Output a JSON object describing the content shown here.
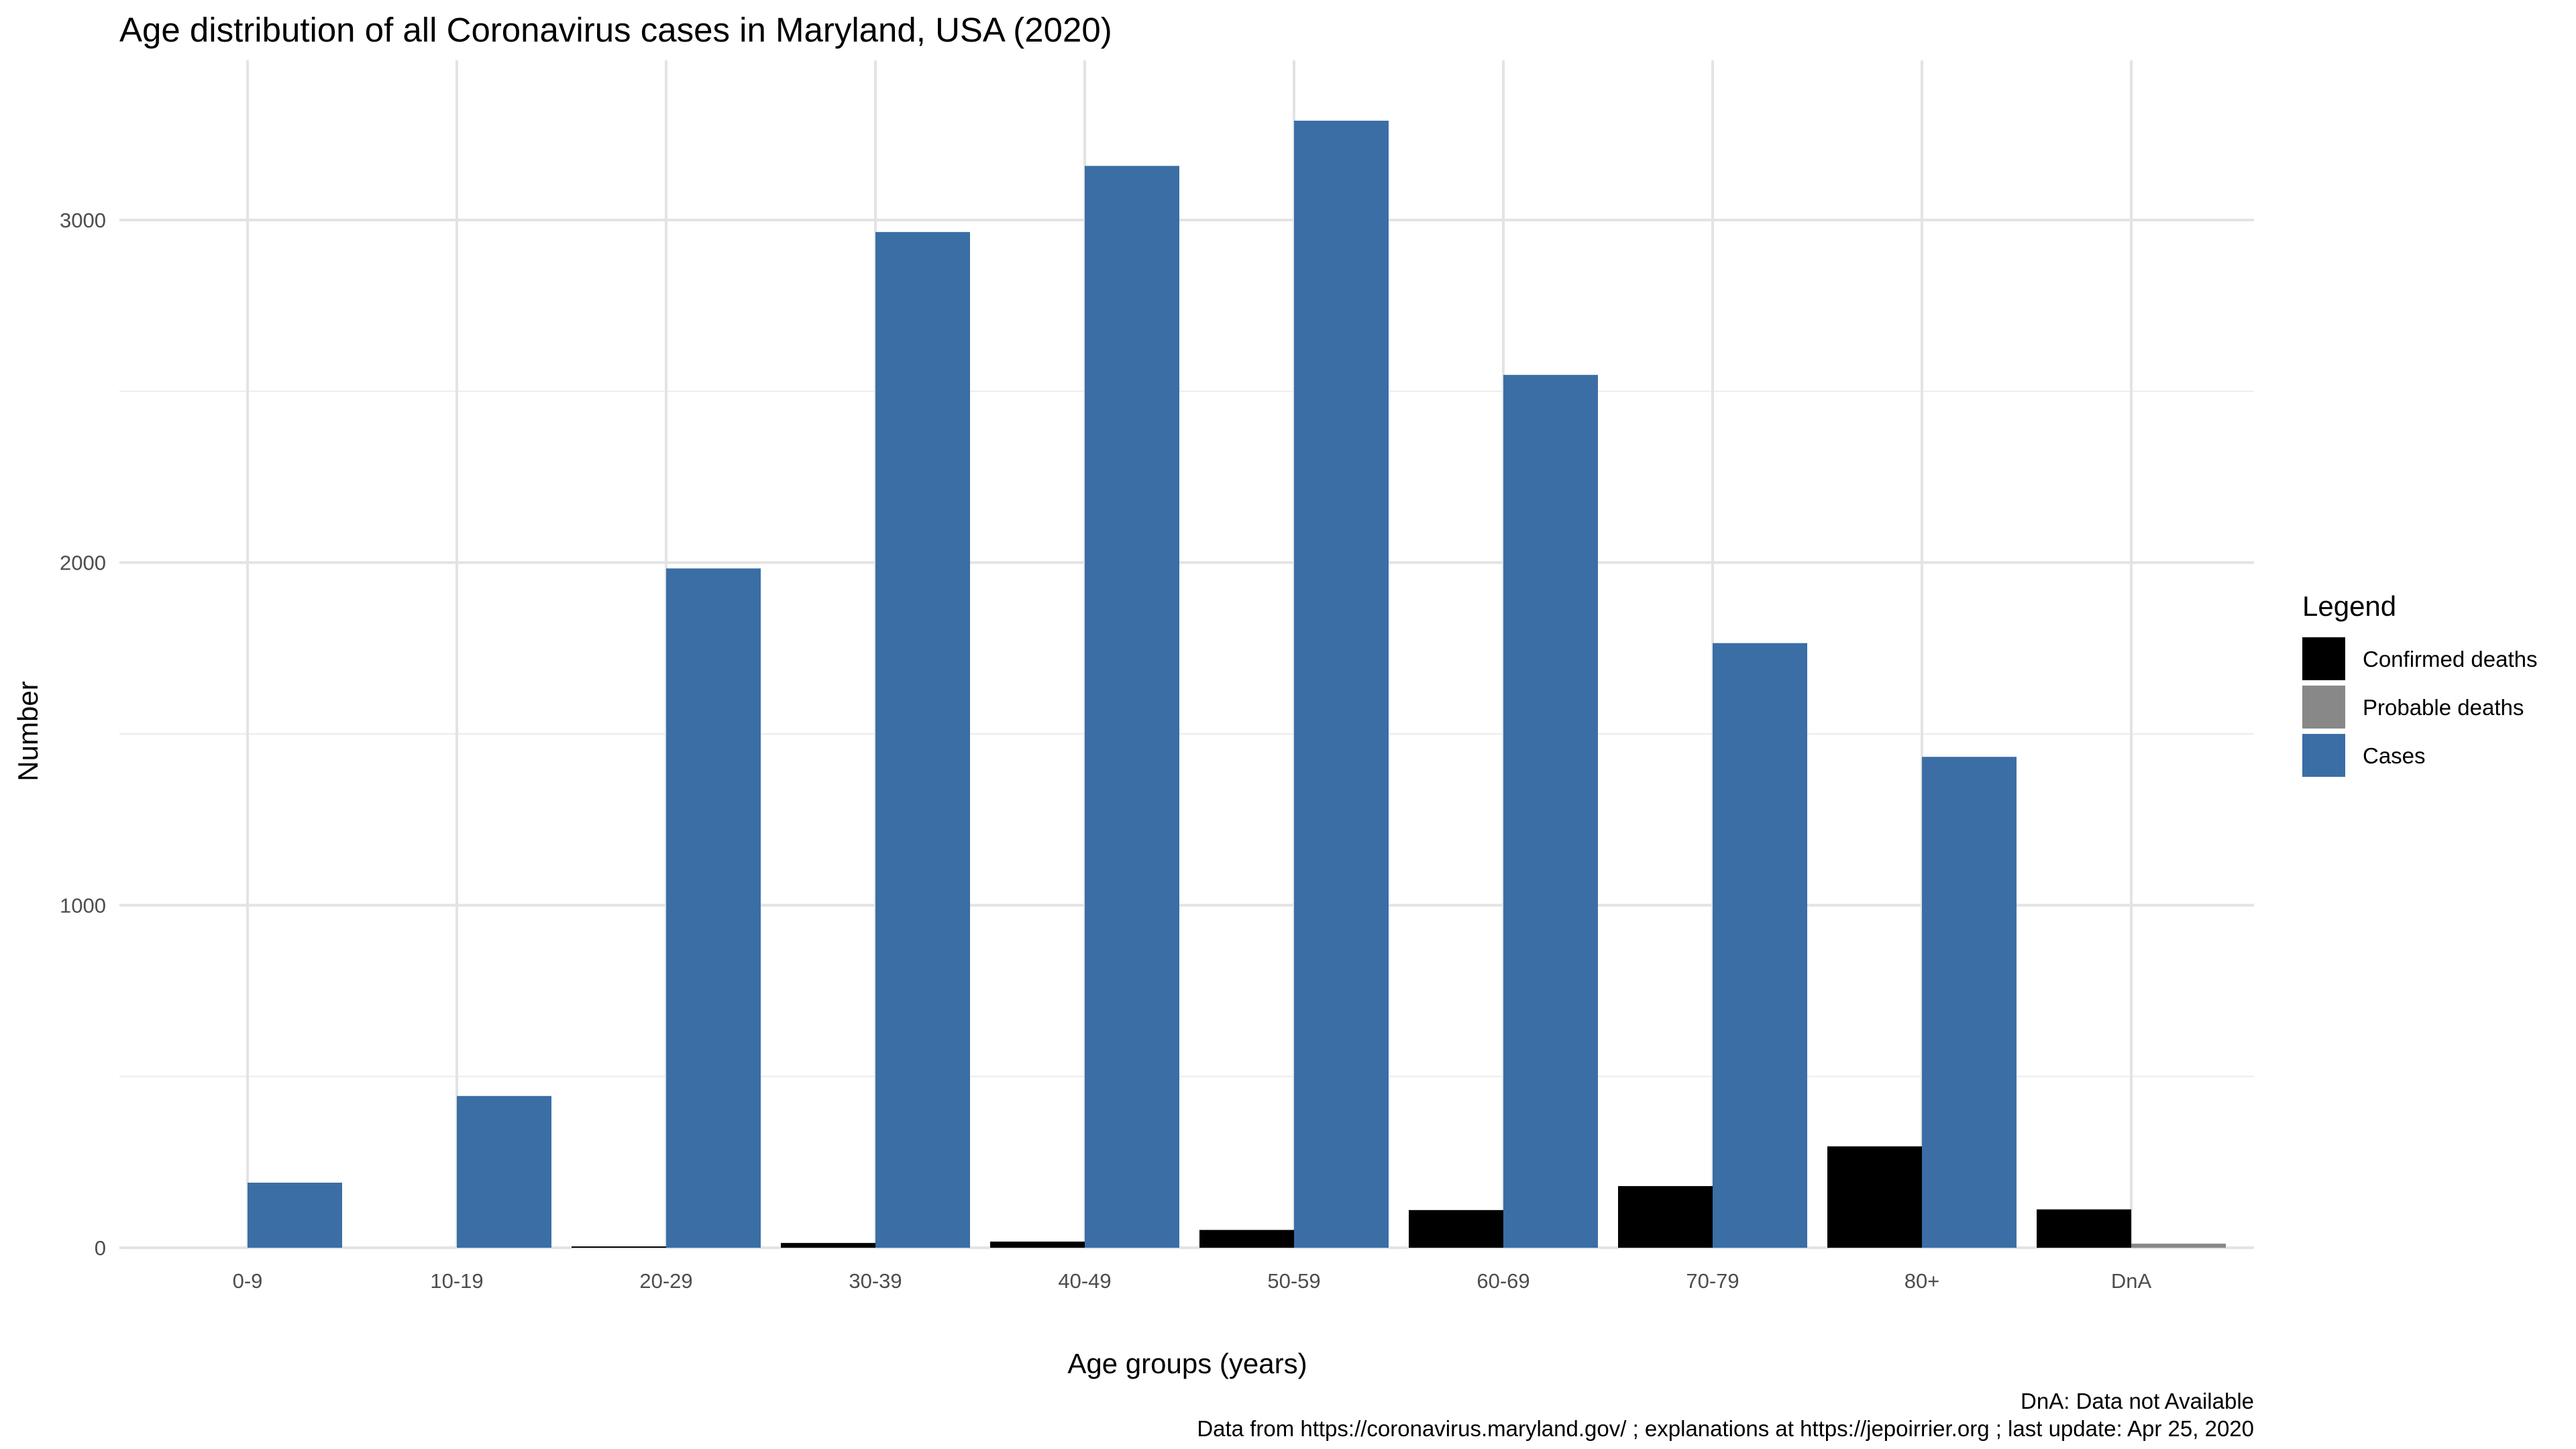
{
  "chart_data": {
    "type": "bar",
    "title": "Age distribution of all Coronavirus cases in Maryland, USA (2020)",
    "xlabel": "Age groups (years)",
    "ylabel": "Number",
    "categories": [
      "0-9",
      "10-19",
      "20-29",
      "30-39",
      "40-49",
      "50-59",
      "60-69",
      "70-79",
      "80+",
      "DnA"
    ],
    "series": [
      {
        "name": "Confirmed deaths",
        "color": "#000000",
        "values": [
          0,
          0,
          3,
          14,
          18,
          52,
          110,
          180,
          296,
          112
        ]
      },
      {
        "name": "Probable deaths",
        "color": "#888888",
        "values": [
          0,
          0,
          0,
          1,
          2,
          6,
          12,
          14,
          38,
          12
        ]
      },
      {
        "name": "Cases",
        "color": "#3a6ea5",
        "values": [
          190,
          443,
          1983,
          2965,
          3158,
          3290,
          2548,
          1765,
          1433,
          0
        ]
      }
    ],
    "yticks": [
      0,
      1000,
      2000,
      3000
    ],
    "ylim": [
      0,
      3290
    ],
    "grid": true,
    "legend": {
      "title": "Legend",
      "position": "right"
    },
    "captions": [
      "DnA: Data not Available",
      "Data from https://coronavirus.maryland.gov/ ; explanations at https://jepoirrier.org ; last update: Apr 25, 2020"
    ]
  }
}
